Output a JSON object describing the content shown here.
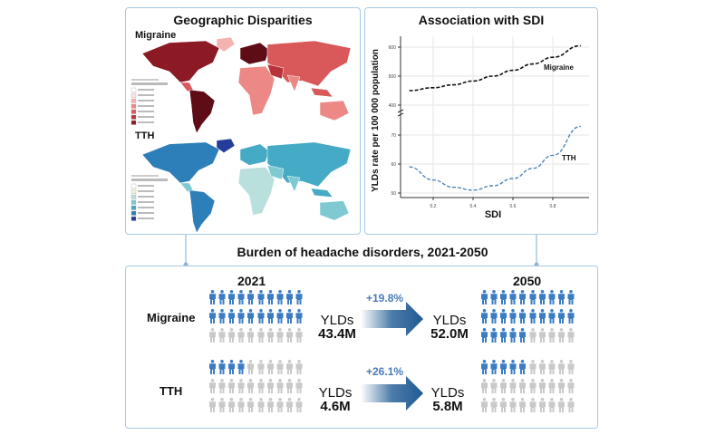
{
  "geo_panel": {
    "title": "Geographic Disparities",
    "maps": [
      {
        "label": "Migraine",
        "palette": [
          "#fbe3e1",
          "#f4b3b1",
          "#ec8987",
          "#d9585a",
          "#b8323a",
          "#8c1a24",
          "#5e0d16"
        ]
      },
      {
        "label": "TTH",
        "palette": [
          "#eef3d8",
          "#b9e0dc",
          "#7fc9d2",
          "#45aac6",
          "#2c7fb8",
          "#253d9a",
          "#1b2a80"
        ]
      }
    ]
  },
  "sdi_panel": {
    "title": "Association with SDI"
  },
  "chart_data": {
    "type": "line",
    "title": "Association with SDI",
    "xlabel": "SDI",
    "ylabel": "YLDs rate per 100 000 population",
    "xticks": [
      "0.2",
      "0.4",
      "0.6",
      "0.8"
    ],
    "yticks_upper": [
      "400",
      "500",
      "600"
    ],
    "yticks_lower": [
      "50",
      "60",
      "70"
    ],
    "axis_break": true,
    "grid": true,
    "series": [
      {
        "name": "Migraine",
        "color": "#111111",
        "style": "dashed",
        "x": [
          0.08,
          0.2,
          0.3,
          0.4,
          0.5,
          0.6,
          0.7,
          0.8,
          0.94
        ],
        "y": [
          450,
          460,
          470,
          483,
          500,
          520,
          542,
          565,
          605
        ]
      },
      {
        "name": "TTH",
        "color": "#4f86b8",
        "style": "dashed",
        "x": [
          0.08,
          0.2,
          0.3,
          0.4,
          0.5,
          0.6,
          0.7,
          0.8,
          0.94
        ],
        "y": [
          59,
          54.5,
          52,
          51,
          52.5,
          55,
          58.5,
          63,
          73
        ]
      }
    ]
  },
  "burden": {
    "title": "Burden of headache disorders, 2021-2050",
    "year_start": "2021",
    "year_end": "2050",
    "colors": {
      "filled": "#3b7cc4",
      "empty": "#c9c9c9",
      "arrow": "#1f5a93"
    },
    "rows": [
      {
        "label": "Migraine",
        "start_label": "YLDs",
        "start_value": "43.4M",
        "change": "+19.8%",
        "end_label": "YLDs",
        "end_value": "52.0M",
        "icons_total": 30,
        "filled_start": 20,
        "filled_end": 25
      },
      {
        "label": "TTH",
        "start_label": "YLDs",
        "start_value": "4.6M",
        "change": "+26.1%",
        "end_label": "YLDs",
        "end_value": "5.8M",
        "icons_total": 30,
        "filled_start": 4,
        "filled_end": 5
      }
    ]
  }
}
